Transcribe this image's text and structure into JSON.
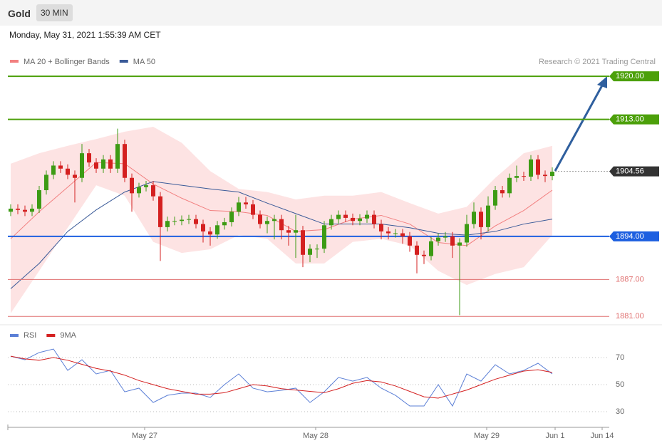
{
  "header": {
    "title": "Gold",
    "interval": "30 MIN",
    "timestamp": "Monday, May 31, 2021 1:55:39 AM CET"
  },
  "chart_data": [
    {
      "type": "candlestick",
      "credit": "Research © 2021 Trading Central",
      "up_color": "#3d9b14",
      "down_color": "#d42020",
      "xlim": [
        -0.4,
        84
      ],
      "ylim": [
        1880.1,
        1921.4
      ],
      "xticks": [
        {
          "value": 18.8,
          "label": "May 27"
        },
        {
          "value": 42.8,
          "label": "May 28"
        },
        {
          "value": 66.8,
          "label": "May 29"
        },
        {
          "value": 76.4,
          "label": "Jun 1"
        },
        {
          "value": 83,
          "label": "Jun 14"
        }
      ],
      "open": [
        1898,
        1898.5,
        1898.3,
        1898,
        1898.5,
        1901.5,
        1904,
        1905.5,
        1905,
        1904,
        1903.5,
        1907.5,
        1906,
        1905,
        1906.5,
        1905,
        1909,
        1903.5,
        1901,
        1902,
        1902.3,
        1900.5,
        1895.5,
        1896.5,
        1896.5,
        1896.7,
        1896.8,
        1896,
        1894.8,
        1894.3,
        1895.8,
        1896.3,
        1898,
        1899.5,
        1899.2,
        1897.5,
        1896,
        1896.5,
        1896.8,
        1895,
        1894.6,
        1895,
        1891,
        1892,
        1892,
        1895.8,
        1896.8,
        1897.5,
        1897,
        1896.5,
        1896.9,
        1897.5,
        1896,
        1894.8,
        1894.5,
        1894.5,
        1894,
        1892.5,
        1891,
        1890.8,
        1893.2,
        1893.8,
        1894,
        1892.5,
        1893,
        1896,
        1898,
        1895.5,
        1899,
        1901.5,
        1901,
        1903.5,
        1903.8,
        1903.7,
        1906.5,
        1904,
        1903.8
      ],
      "high": [
        1899.2,
        1899.2,
        1899,
        1899.2,
        1902.2,
        1904.7,
        1906.2,
        1906.2,
        1905.7,
        1904.7,
        1909,
        1908.2,
        1906.7,
        1907.2,
        1907.2,
        1911.5,
        1909.7,
        1904.2,
        1902.7,
        1903,
        1903,
        1901.2,
        1897.2,
        1897.2,
        1897.4,
        1897.5,
        1897.5,
        1896.7,
        1895.5,
        1896.5,
        1897,
        1898.7,
        1900.4,
        1900.4,
        1899.9,
        1898.2,
        1897.2,
        1897.5,
        1897.5,
        1895.7,
        1897.5,
        1895.7,
        1892.7,
        1892.7,
        1896.5,
        1897.5,
        1898.2,
        1898.2,
        1897.7,
        1897.6,
        1898.2,
        1898.2,
        1896.7,
        1895.5,
        1895.2,
        1895.2,
        1894.7,
        1893.2,
        1891.7,
        1893.9,
        1894.5,
        1894.7,
        1894.7,
        1893.7,
        1897.5,
        1899.5,
        1898.7,
        1900.5,
        1902.2,
        1902.2,
        1904.2,
        1905.5,
        1904.5,
        1907.2,
        1907.2,
        1904.7,
        1905.2
      ],
      "low": [
        1897.3,
        1897.6,
        1897.3,
        1897.3,
        1897.8,
        1900.8,
        1903.3,
        1904.3,
        1903.3,
        1899.5,
        1902.8,
        1905.3,
        1904.3,
        1904.3,
        1904.3,
        1904.3,
        1902.8,
        1898,
        1900.3,
        1901.3,
        1899.8,
        1890,
        1894.8,
        1895.8,
        1895.8,
        1896,
        1895.3,
        1893,
        1892.5,
        1893.6,
        1895.1,
        1895.6,
        1897.3,
        1898.5,
        1896.8,
        1895.3,
        1894.5,
        1893.5,
        1893.5,
        1892.5,
        1890.5,
        1889,
        1889.8,
        1890.5,
        1891.3,
        1895.1,
        1896.1,
        1896.3,
        1895.8,
        1895.8,
        1896.2,
        1895.3,
        1893.5,
        1893.5,
        1893.8,
        1892.8,
        1891.5,
        1888,
        1889.5,
        1890.1,
        1892.5,
        1893.1,
        1890.5,
        1881.2,
        1892.3,
        1895.3,
        1893.5,
        1894.8,
        1898.3,
        1900.3,
        1900.3,
        1902.8,
        1903,
        1903,
        1903.3,
        1902.8,
        1903.1
      ],
      "close": [
        1898.5,
        1898.3,
        1898,
        1898.5,
        1901.5,
        1904,
        1905.5,
        1905,
        1904,
        1903.5,
        1907.5,
        1906,
        1905,
        1906.5,
        1905,
        1909,
        1903.5,
        1901,
        1902,
        1902.3,
        1900.5,
        1895.5,
        1896.5,
        1896.5,
        1896.7,
        1896.8,
        1896,
        1894.8,
        1894.3,
        1895.8,
        1896.3,
        1898,
        1899.5,
        1899.2,
        1897.5,
        1896,
        1896.5,
        1896.8,
        1895,
        1894.6,
        1895,
        1891,
        1892,
        1892,
        1895.8,
        1896.8,
        1897.5,
        1897,
        1896.5,
        1896.9,
        1897.5,
        1896,
        1894.8,
        1894.5,
        1894.5,
        1894,
        1892.5,
        1891,
        1890.8,
        1893.2,
        1893.8,
        1894,
        1892.5,
        1893,
        1896,
        1898,
        1895.5,
        1899,
        1901.5,
        1901,
        1903.5,
        1903.8,
        1903.7,
        1906.5,
        1904,
        1903.8,
        1904.5
      ],
      "overlays": [
        {
          "name": "MA 20 + Bollinger Bands",
          "color": "#f28080",
          "band_color": "#fde3e3",
          "x": [
            0,
            4,
            8,
            12,
            16,
            20,
            24,
            28,
            32,
            36,
            40,
            44,
            48,
            52,
            56,
            60,
            64,
            68,
            72,
            76
          ],
          "values": [
            1893.6,
            1898,
            1902,
            1906,
            1905.8,
            1902.5,
            1900.2,
            1898.2,
            1898,
            1897.4,
            1894.8,
            1895.1,
            1896.8,
            1897.4,
            1896,
            1893,
            1892.5,
            1895.7,
            1898.2,
            1901.5
          ],
          "upper": [
            1905.8,
            1907.5,
            1908.7,
            1909.8,
            1911,
            1911.8,
            1909.2,
            1904.6,
            1901.7,
            1901.2,
            1900,
            1900.6,
            1900.6,
            1901.2,
            1899.4,
            1897.7,
            1898.8,
            1903.5,
            1907.5,
            1908.7
          ],
          "lower": [
            1881.5,
            1888.4,
            1895.4,
            1902.3,
            1900.6,
            1893.1,
            1891.3,
            1891.9,
            1894.2,
            1893.6,
            1889.6,
            1889.6,
            1893.1,
            1893.6,
            1892.5,
            1888.4,
            1886.1,
            1887.9,
            1889,
            1894.2
          ]
        },
        {
          "name": "MA 50",
          "color": "#3a5a98",
          "x": [
            0,
            4,
            8,
            12,
            16,
            20,
            24,
            28,
            32,
            36,
            40,
            44,
            48,
            52,
            56,
            60,
            64,
            68,
            72,
            76
          ],
          "values": [
            1885.5,
            1889.6,
            1894.8,
            1898.3,
            1901.2,
            1902.9,
            1902.3,
            1901.7,
            1901.2,
            1899.4,
            1897.7,
            1896,
            1896,
            1896,
            1895.4,
            1894.5,
            1894.2,
            1894.8,
            1896,
            1896.8
          ]
        }
      ],
      "levels": [
        {
          "value": 1920,
          "label": "1920.00",
          "color": "#4ca00a",
          "style": "solid"
        },
        {
          "value": 1913,
          "label": "1913.00",
          "color": "#4ca00a",
          "style": "solid"
        },
        {
          "value": 1904.56,
          "label": "1904.56",
          "color": "#333333",
          "style": "dotted"
        },
        {
          "value": 1894,
          "label": "1894.00",
          "color": "#1d5fe0",
          "style": "solid"
        },
        {
          "value": 1887,
          "label": "1887.00",
          "color": "#e07070",
          "style": "text"
        },
        {
          "value": 1881,
          "label": "1881.00",
          "color": "#e07070",
          "style": "text"
        }
      ]
    },
    {
      "type": "line",
      "xlim": [
        -0.4,
        84
      ],
      "ylim": [
        19.5,
        92.1
      ],
      "yticks": [
        30,
        50,
        70
      ],
      "x": [
        0,
        2,
        4,
        6,
        8,
        10,
        12,
        14,
        16,
        18,
        20,
        22,
        24,
        26,
        28,
        30,
        32,
        34,
        36,
        38,
        40,
        42,
        44,
        46,
        48,
        50,
        52,
        54,
        56,
        58,
        60,
        62,
        64,
        66,
        68,
        70,
        72,
        74,
        76
      ],
      "series": [
        {
          "name": "RSI",
          "color": "#5b7fd6",
          "values": [
            71,
            68.4,
            73.7,
            76.3,
            60.5,
            68.4,
            57.9,
            60.5,
            44.7,
            47.4,
            36.8,
            42.1,
            43.7,
            43.7,
            40.5,
            50,
            57.9,
            47.4,
            44.7,
            45.8,
            47.4,
            36.8,
            44.7,
            55.3,
            52.6,
            55.3,
            47.4,
            42.1,
            34.2,
            34.2,
            50,
            34.2,
            57.9,
            52.6,
            64.7,
            57.9,
            60.5,
            65.8,
            57.9
          ]
        },
        {
          "name": "9MA",
          "color": "#d42020",
          "values": [
            71,
            69,
            68,
            70,
            68,
            65,
            62,
            60,
            57,
            53,
            50,
            47,
            45,
            43,
            43,
            44,
            47,
            50,
            49,
            47,
            46,
            45,
            44,
            47,
            51,
            53,
            52,
            49,
            45,
            41,
            40,
            43,
            46,
            50,
            54,
            57,
            60,
            61,
            59
          ]
        }
      ]
    }
  ]
}
